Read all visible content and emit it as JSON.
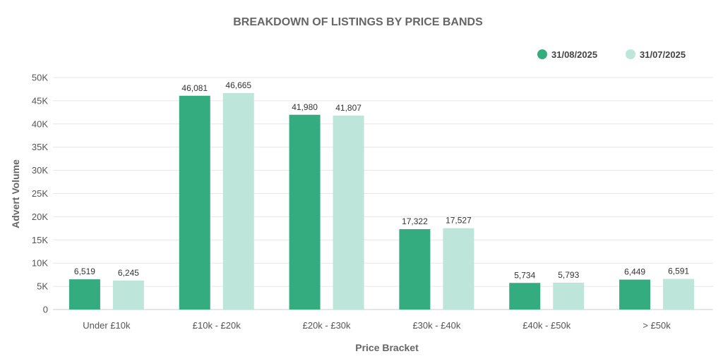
{
  "chart_data": {
    "type": "bar",
    "title": "BREAKDOWN OF LISTINGS BY PRICE BANDS",
    "xlabel": "Price Bracket",
    "ylabel": "Advert Volume",
    "categories": [
      "Under £10k",
      "£10k - £20k",
      "£20k - £30k",
      "£30k - £40k",
      "£40k - £50k",
      "> £50k"
    ],
    "series": [
      {
        "name": "31/08/2025",
        "color": "#35ab80",
        "values": [
          6519,
          46081,
          41980,
          17322,
          5734,
          6449
        ],
        "labels": [
          "6,519",
          "46,081",
          "41,980",
          "17,322",
          "5,734",
          "6,449"
        ]
      },
      {
        "name": "31/07/2025",
        "color": "#bde5da",
        "values": [
          6245,
          46665,
          41807,
          17527,
          5793,
          6591
        ],
        "labels": [
          "6,245",
          "46,665",
          "41,807",
          "17,527",
          "5,793",
          "6,591"
        ]
      }
    ],
    "ylim": [
      0,
      50000
    ],
    "yticks": [
      0,
      5000,
      10000,
      15000,
      20000,
      25000,
      30000,
      35000,
      40000,
      45000,
      50000
    ],
    "ytick_labels": [
      "0",
      "5K",
      "10K",
      "15K",
      "20K",
      "25K",
      "30K",
      "35K",
      "40K",
      "45K",
      "50K"
    ],
    "grid": true,
    "legend_position": "top-right"
  }
}
